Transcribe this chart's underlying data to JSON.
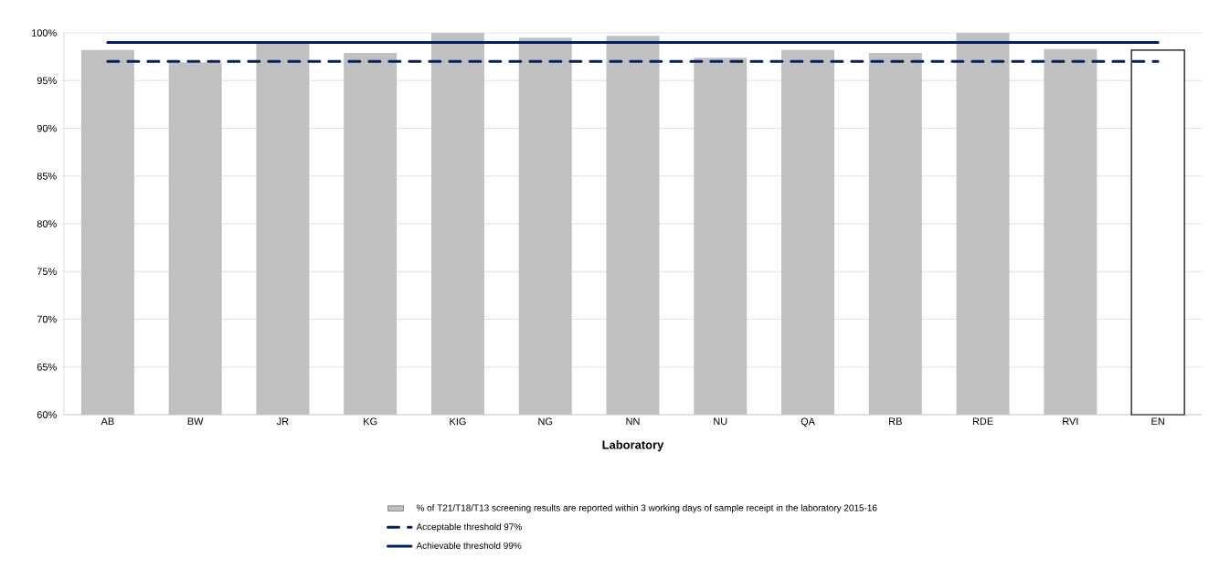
{
  "chart_data": {
    "type": "bar",
    "xlabel": "Laboratory",
    "categories": [
      "AB",
      "BW",
      "JR",
      "KG",
      "KIG",
      "NG",
      "NN",
      "NU",
      "QA",
      "RB",
      "RDE",
      "RVI",
      "EN"
    ],
    "series": [
      {
        "name": "% of T21/T18/T13 screening results are reported within 3 working days of sample receipt in the laboratory 2015-16",
        "values": [
          98.2,
          96.9,
          98.9,
          97.9,
          100,
          99.5,
          99.7,
          97.4,
          98.2,
          97.9,
          100,
          98.3,
          98.2
        ],
        "colors": [
          "#c0c0c0",
          "#c0c0c0",
          "#c0c0c0",
          "#c0c0c0",
          "#c0c0c0",
          "#c0c0c0",
          "#c0c0c0",
          "#c0c0c0",
          "#c0c0c0",
          "#c0c0c0",
          "#c0c0c0",
          "#c0c0c0",
          "#ffffff"
        ]
      }
    ],
    "ref_lines": [
      {
        "axis": "y",
        "value": 97,
        "label": "Acceptable threshold 97%",
        "color": "#002060",
        "line_style": "dashed"
      },
      {
        "axis": "y",
        "value": 99,
        "label": "Achievable threshold 99%",
        "color": "#002060",
        "line_style": "solid"
      }
    ],
    "ylim": [
      60,
      100
    ],
    "yticks": [
      {
        "value": 60,
        "label": "60%"
      },
      {
        "value": 65,
        "label": "65%"
      },
      {
        "value": 70,
        "label": "70%"
      },
      {
        "value": 75,
        "label": "75%"
      },
      {
        "value": 80,
        "label": "80%"
      },
      {
        "value": 85,
        "label": "85%"
      },
      {
        "value": 90,
        "label": "90%"
      },
      {
        "value": 95,
        "label": "95%"
      },
      {
        "value": 100,
        "label": "100%"
      }
    ],
    "grid": "y",
    "legend": "bottom"
  }
}
